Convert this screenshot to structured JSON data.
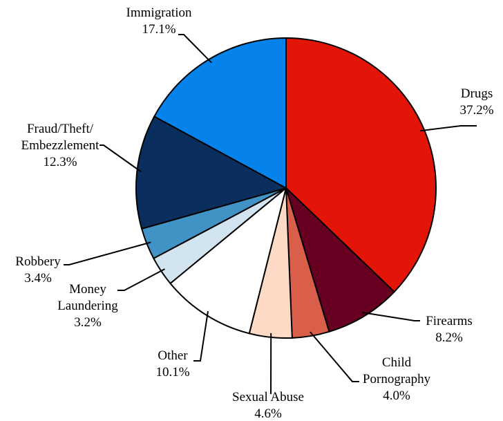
{
  "chart_data": {
    "type": "pie",
    "title": "",
    "slices": [
      {
        "name": "Drugs",
        "value": 37.2,
        "label_lines": [
          "Drugs"
        ],
        "pct_label": "37.2%",
        "color": "#e31508"
      },
      {
        "name": "Firearms",
        "value": 8.2,
        "label_lines": [
          "Firearms"
        ],
        "pct_label": "8.2%",
        "color": "#670020"
      },
      {
        "name": "Child Pornography",
        "value": 4.0,
        "label_lines": [
          "Child",
          "Pornography"
        ],
        "pct_label": "4.0%",
        "color": "#d95f4a"
      },
      {
        "name": "Sexual Abuse",
        "value": 4.6,
        "label_lines": [
          "Sexual Abuse"
        ],
        "pct_label": "4.6%",
        "color": "#fcdac6"
      },
      {
        "name": "Other",
        "value": 10.1,
        "label_lines": [
          "Other"
        ],
        "pct_label": "10.1%",
        "color": "#ffffff"
      },
      {
        "name": "Money Laundering",
        "value": 3.2,
        "label_lines": [
          "Money",
          "Laundering"
        ],
        "pct_label": "3.2%",
        "color": "#d1e4f0"
      },
      {
        "name": "Robbery",
        "value": 3.4,
        "label_lines": [
          "Robbery"
        ],
        "pct_label": "3.4%",
        "color": "#4093c4"
      },
      {
        "name": "Fraud/Theft/Embezzlement",
        "value": 12.3,
        "label_lines": [
          "Fraud/Theft/",
          "Embezzlement"
        ],
        "pct_label": "12.3%",
        "color": "#0a2e5e"
      },
      {
        "name": "Immigration",
        "value": 17.1,
        "label_lines": [
          "Immigration"
        ],
        "pct_label": "17.1%",
        "color": "#0683ea"
      }
    ]
  }
}
